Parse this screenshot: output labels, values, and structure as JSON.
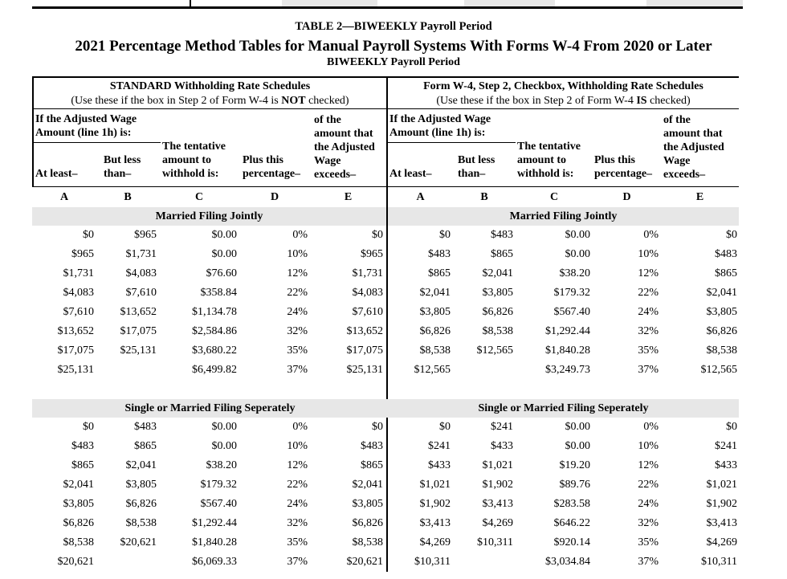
{
  "titles": {
    "table_label": "TABLE 2—BIWEEKLY Payroll Period",
    "main_title": "2021 Percentage Method Tables for Manual Payroll Systems With Forms W-4 From 2020 or Later",
    "subtitle": "BIWEEKLY Payroll Period"
  },
  "colors": {
    "banner_bg": "#e7e7e7",
    "line": "#000000",
    "text": "#000000",
    "page_bg": "#ffffff"
  },
  "schedules": [
    {
      "title": "STANDARD Withholding Rate Schedules",
      "use_prefix": "(Use these if the box in Step 2 of Form W-4 is ",
      "use_bold": "NOT",
      "use_suffix": " checked)"
    },
    {
      "title": "Form W-4, Step 2, Checkbox, Withholding Rate Schedules",
      "use_prefix": "(Use these if the box in Step 2 of Form W-4 ",
      "use_bold": "IS",
      "use_suffix": " checked)"
    }
  ],
  "column_headers": {
    "wage_span": "If the Adjusted Wage Amount (line 1h) is:",
    "at_least": "At least–",
    "but_less_than": "But less than–",
    "tentative": "The tentative amount to withhold is:",
    "plus_percentage": "Plus this percentage–",
    "of_excess": "of the amount that the Adjusted Wage exceeds–",
    "letters": [
      "A",
      "B",
      "C",
      "D",
      "E"
    ]
  },
  "sections": [
    {
      "label": "Married Filing Jointly",
      "left_rows": [
        [
          "$0",
          "$965",
          "$0.00",
          "0%",
          "$0"
        ],
        [
          "$965",
          "$1,731",
          "$0.00",
          "10%",
          "$965"
        ],
        [
          "$1,731",
          "$4,083",
          "$76.60",
          "12%",
          "$1,731"
        ],
        [
          "$4,083",
          "$7,610",
          "$358.84",
          "22%",
          "$4,083"
        ],
        [
          "$7,610",
          "$13,652",
          "$1,134.78",
          "24%",
          "$7,610"
        ],
        [
          "$13,652",
          "$17,075",
          "$2,584.86",
          "32%",
          "$13,652"
        ],
        [
          "$17,075",
          "$25,131",
          "$3,680.22",
          "35%",
          "$17,075"
        ],
        [
          "$25,131",
          "",
          "$6,499.82",
          "37%",
          "$25,131"
        ]
      ],
      "right_rows": [
        [
          "$0",
          "$483",
          "$0.00",
          "0%",
          "$0"
        ],
        [
          "$483",
          "$865",
          "$0.00",
          "10%",
          "$483"
        ],
        [
          "$865",
          "$2,041",
          "$38.20",
          "12%",
          "$865"
        ],
        [
          "$2,041",
          "$3,805",
          "$179.32",
          "22%",
          "$2,041"
        ],
        [
          "$3,805",
          "$6,826",
          "$567.40",
          "24%",
          "$3,805"
        ],
        [
          "$6,826",
          "$8,538",
          "$1,292.44",
          "32%",
          "$6,826"
        ],
        [
          "$8,538",
          "$12,565",
          "$1,840.28",
          "35%",
          "$8,538"
        ],
        [
          "$12,565",
          "",
          "$3,249.73",
          "37%",
          "$12,565"
        ]
      ]
    },
    {
      "label": "Single or Married Filing Seperately",
      "left_rows": [
        [
          "$0",
          "$483",
          "$0.00",
          "0%",
          "$0"
        ],
        [
          "$483",
          "$865",
          "$0.00",
          "10%",
          "$483"
        ],
        [
          "$865",
          "$2,041",
          "$38.20",
          "12%",
          "$865"
        ],
        [
          "$2,041",
          "$3,805",
          "$179.32",
          "22%",
          "$2,041"
        ],
        [
          "$3,805",
          "$6,826",
          "$567.40",
          "24%",
          "$3,805"
        ],
        [
          "$6,826",
          "$8,538",
          "$1,292.44",
          "32%",
          "$6,826"
        ],
        [
          "$8,538",
          "$20,621",
          "$1,840.28",
          "35%",
          "$8,538"
        ],
        [
          "$20,621",
          "",
          "$6,069.33",
          "37%",
          "$20,621"
        ]
      ],
      "right_rows": [
        [
          "$0",
          "$241",
          "$0.00",
          "0%",
          "$0"
        ],
        [
          "$241",
          "$433",
          "$0.00",
          "10%",
          "$241"
        ],
        [
          "$433",
          "$1,021",
          "$19.20",
          "12%",
          "$433"
        ],
        [
          "$1,021",
          "$1,902",
          "$89.76",
          "22%",
          "$1,021"
        ],
        [
          "$1,902",
          "$3,413",
          "$283.58",
          "24%",
          "$1,902"
        ],
        [
          "$3,413",
          "$4,269",
          "$646.22",
          "32%",
          "$3,413"
        ],
        [
          "$4,269",
          "$10,311",
          "$920.14",
          "35%",
          "$4,269"
        ],
        [
          "$10,311",
          "",
          "$3,034.84",
          "37%",
          "$10,311"
        ]
      ]
    }
  ]
}
